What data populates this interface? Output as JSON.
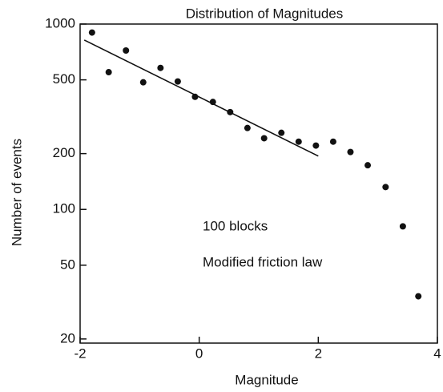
{
  "chart_data": {
    "type": "scatter",
    "title": "Distribution of Magnitudes",
    "x_label": "Magnitude",
    "y_label": "Number of events",
    "annotations": [
      "100 blocks",
      "Modified friction law"
    ],
    "y_scale": "log",
    "xlim": [
      -2,
      4
    ],
    "ylim": [
      19,
      1000
    ],
    "xticks": [
      -2,
      0,
      2,
      4
    ],
    "yticks": [
      1000,
      500,
      200,
      100,
      50,
      20
    ],
    "series": [
      {
        "color": "#111111",
        "x": [
          -1.8,
          -1.52,
          -1.23,
          -0.94,
          -0.65,
          -0.36,
          -0.07,
          0.23,
          0.52,
          0.81,
          1.09,
          1.38,
          1.67,
          1.96,
          2.25,
          2.54,
          2.83,
          3.13,
          3.42,
          3.68
        ],
        "values": [
          900,
          550,
          720,
          485,
          580,
          490,
          405,
          380,
          335,
          275,
          242,
          259,
          232,
          221,
          232,
          204,
          173,
          132,
          81,
          34
        ]
      }
    ],
    "fit_line": {
      "color": "#111111",
      "x": [
        -1.93,
        2
      ],
      "values": [
        820,
        194
      ]
    }
  }
}
